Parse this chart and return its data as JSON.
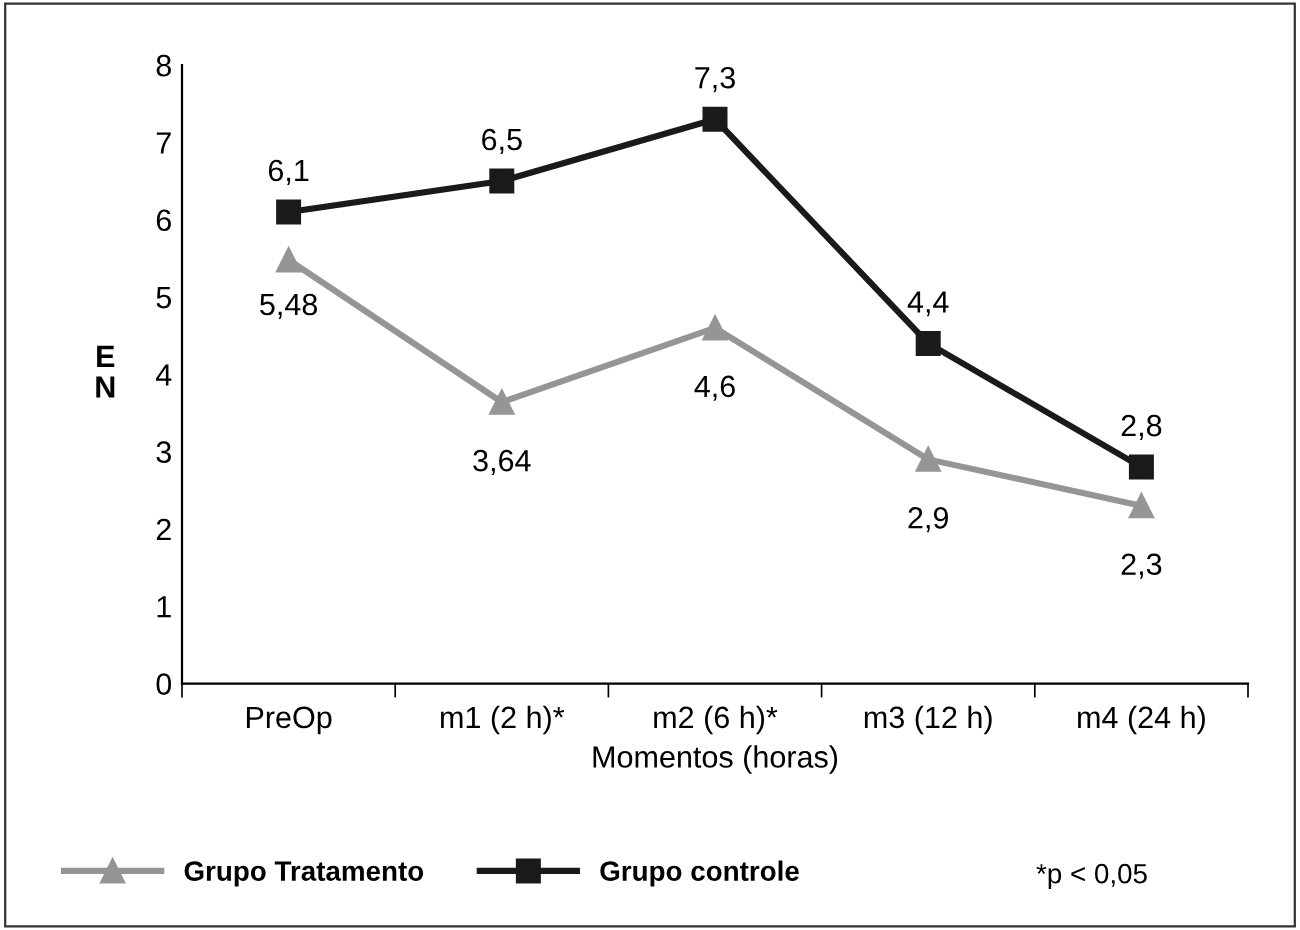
{
  "chart_data": {
    "type": "line",
    "xlabel": "Momentos (horas)",
    "ylabel": "E\nN",
    "categories": [
      "PreOp",
      "m1 (2 h)*",
      "m2 (6 h)*",
      "m3 (12 h)",
      "m4 (24 h)"
    ],
    "series": [
      {
        "name": "Grupo Tratamento",
        "color": "#959595",
        "marker": "triangle",
        "values": [
          5.48,
          3.64,
          4.6,
          2.9,
          2.3
        ],
        "value_labels": [
          "5,48",
          "3,64",
          "4,6",
          "2,9",
          "2,3"
        ]
      },
      {
        "name": "Grupo controle",
        "color": "#1a1a1a",
        "marker": "square",
        "values": [
          6.1,
          6.5,
          7.3,
          4.4,
          2.8
        ],
        "value_labels": [
          "6,1",
          "6,5",
          "7,3",
          "4,4",
          "2,8"
        ]
      }
    ],
    "ylim": [
      0,
      8
    ],
    "yticks": [
      0,
      1,
      2,
      3,
      4,
      5,
      6,
      7,
      8
    ],
    "grid": false,
    "legend": "bottom",
    "annotations": [
      "*p < 0,05"
    ]
  }
}
